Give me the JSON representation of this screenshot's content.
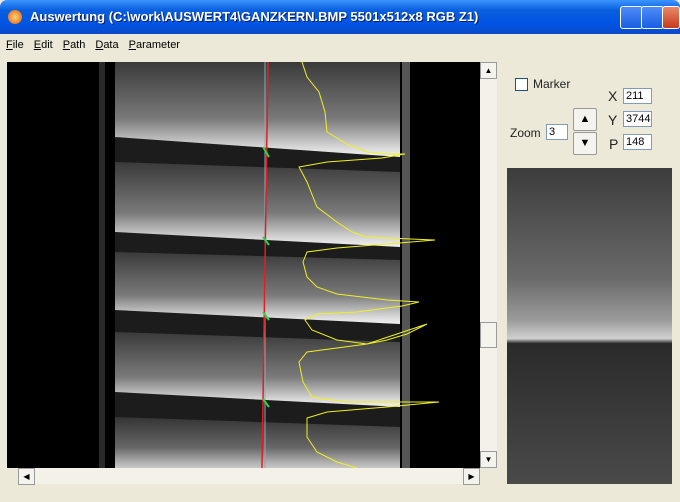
{
  "title": "Auswertung (C:\\work\\AUSWERT4\\GANZKERN.BMP 5501x512x8 RGB Z1)",
  "menu": [
    "File",
    "Edit",
    "Path",
    "Data",
    "Parameter"
  ],
  "panel": {
    "marker": "Marker",
    "zoom_label": "Zoom",
    "zoom_value": "3",
    "x_label": "X",
    "x_value": "211",
    "y_label": "Y",
    "y_value": "3744",
    "p_label": "P",
    "p_value": "148"
  }
}
